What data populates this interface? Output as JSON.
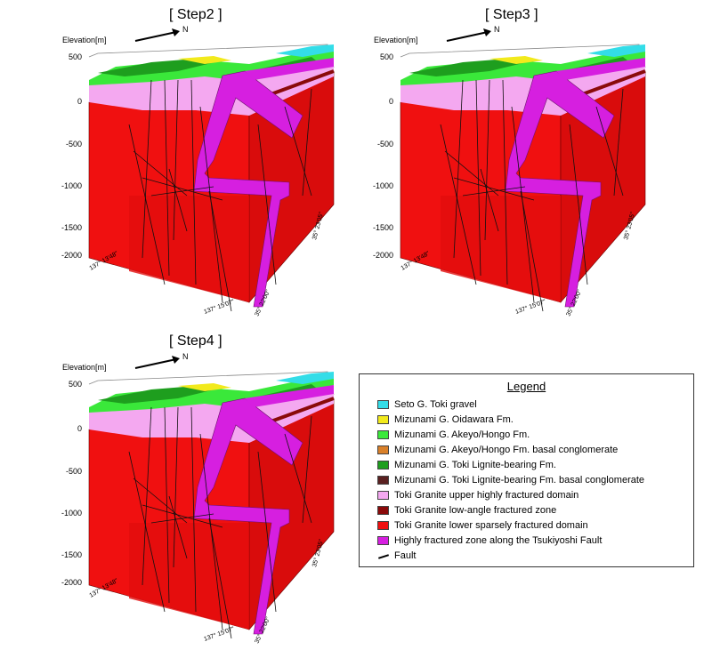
{
  "steps": [
    {
      "title": "[ Step2 ]"
    },
    {
      "title": "[ Step3 ]"
    },
    {
      "title": "[ Step4 ]"
    }
  ],
  "axis": {
    "elevation_label": "Elevation[m]",
    "north_label": "N",
    "ticks": [
      "500",
      "0",
      "-500",
      "-1000",
      "-1500",
      "-2000"
    ],
    "coords": {
      "lon_left": "137° 13'48\"",
      "lon_bottom": "137° 15'07\"",
      "lat_bottom": "35° 22'00\"",
      "lat_right": "35° 23'05\""
    }
  },
  "legend": {
    "title": "Legend",
    "items": [
      {
        "label": "Seto G.  Toki gravel",
        "color": "#33dde8"
      },
      {
        "label": "Mizunami G.  Oidawara Fm.",
        "color": "#f2ea1c"
      },
      {
        "label": "Mizunami G.  Akeyo/Hongo Fm.",
        "color": "#3ae83a"
      },
      {
        "label": "Mizunami G.  Akeyo/Hongo Fm. basal conglomerate",
        "color": "#d9802a"
      },
      {
        "label": "Mizunami G.  Toki Lignite-bearing Fm.",
        "color": "#1e9e1e"
      },
      {
        "label": "Mizunami G.  Toki Lignite-bearing Fm. basal conglomerate",
        "color": "#5a2020"
      },
      {
        "label": "Toki Granite upper highly fractured domain",
        "color": "#f4a8f0"
      },
      {
        "label": "Toki Granite low-angle fractured zone",
        "color": "#8a0a0a"
      },
      {
        "label": "Toki Granite lower sparsely fractured domain",
        "color": "#f01010"
      },
      {
        "label": "Highly fractured zone along the Tsukiyoshi Fault",
        "color": "#d61fe0"
      }
    ],
    "fault_label": "Fault"
  }
}
